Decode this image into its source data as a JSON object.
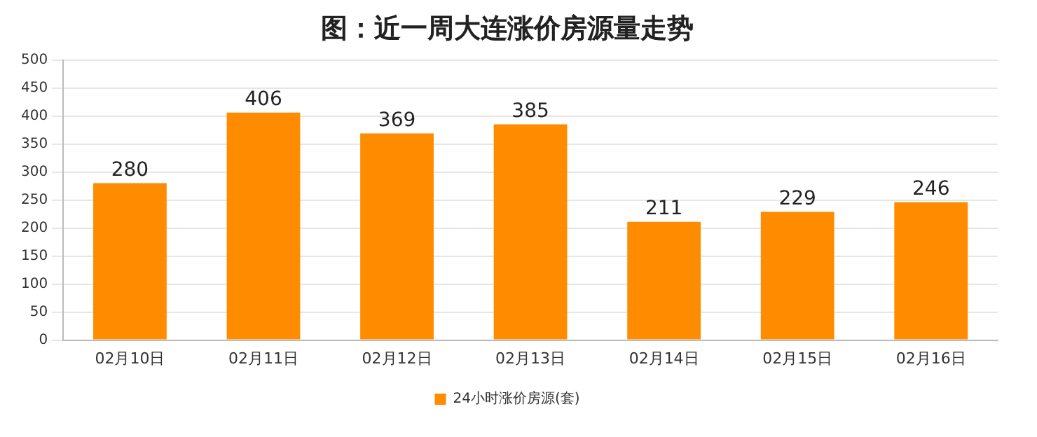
{
  "chart_data": {
    "type": "bar",
    "title": "图：近一周大连涨价房源量走势",
    "categories": [
      "02月10日",
      "02月11日",
      "02月12日",
      "02月13日",
      "02月14日",
      "02月15日",
      "02月16日"
    ],
    "series": [
      {
        "name": "24小时涨价房源(套)",
        "color": "#ff8c00",
        "values": [
          280,
          406,
          369,
          385,
          211,
          229,
          246
        ]
      }
    ],
    "ylim": [
      0,
      500
    ],
    "yticks": [
      0,
      50,
      100,
      150,
      200,
      250,
      300,
      350,
      400,
      450,
      500
    ],
    "grid": "y",
    "legend": "bottom",
    "data_labels": true
  }
}
